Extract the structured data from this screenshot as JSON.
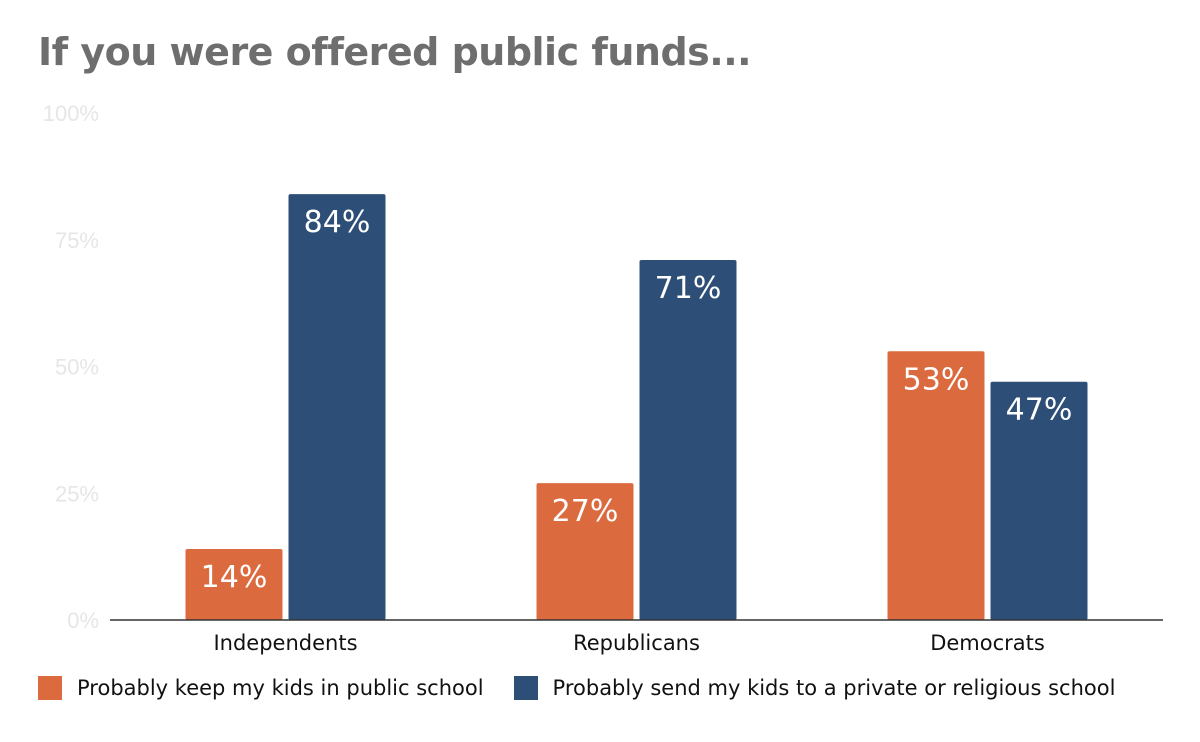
{
  "chart_data": {
    "type": "bar",
    "title": "If you were offered public funds...",
    "categories": [
      "Independents",
      "Republicans",
      "Democrats"
    ],
    "series": [
      {
        "name": "Probably keep my kids in public school",
        "values": [
          14,
          27,
          53
        ],
        "color": "#dc6a3f"
      },
      {
        "name": "Probably send my kids to a private or religious school",
        "values": [
          84,
          71,
          47
        ],
        "color": "#2d4e77"
      }
    ],
    "data_labels": [
      [
        "14%",
        "27%",
        "53%"
      ],
      [
        "84%",
        "71%",
        "47%"
      ]
    ],
    "ylim": [
      0,
      100
    ],
    "yticks": [
      0,
      25,
      50,
      75,
      100
    ],
    "ytick_labels": [
      "0%",
      "25%",
      "50%",
      "75%",
      "100%"
    ],
    "xlabel": "",
    "ylabel": "",
    "grid": false,
    "legend_position": "bottom-left"
  }
}
